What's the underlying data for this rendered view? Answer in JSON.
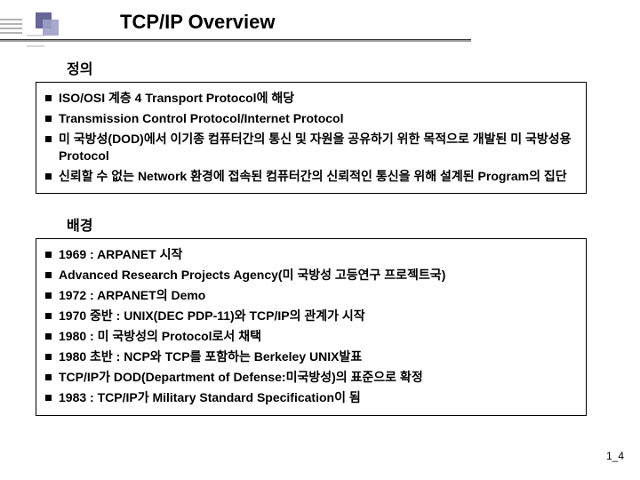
{
  "title": "TCP/IP Overview",
  "page_number": "1_4",
  "section1_title": "정의",
  "section2_title": "배경",
  "definition_items": [
    "ISO/OSI 계층 4 Transport Protocol에 해당",
    "Transmission Control Protocol/Internet Protocol",
    "미 국방성(DOD)에서 이기종 컴퓨터간의 통신 및 자원을 공유하기 위한 목적으로 개발된 미 국방성용 Protocol",
    "신뢰할 수 없는 Network 환경에 접속된 컴퓨터간의 신뢰적인 통신을 위해 설계된 Program의 집단"
  ],
  "background_items": [
    "1969 : ARPANET 시작",
    "Advanced Research Projects Agency(미 국방성 고등연구 프로젝트국)",
    "1972 : ARPANET의 Demo",
    "1970 중반 : UNIX(DEC PDP-11)와 TCP/IP의 관계가 시작",
    "1980 : 미 국방성의 Protocol로서 채택",
    "1980 초반 : NCP와 TCP를 포함하는 Berkeley UNIX발표",
    "TCP/IP가 DOD(Department of Defense:미국방성)의 표준으로 확정",
    "1983 : TCP/IP가 Military Standard Specification이 됨"
  ],
  "colors": {
    "text": "#000000",
    "border": "#000000",
    "icon_primary": "#666699",
    "icon_secondary": "#a0a0c8",
    "background": "#ffffff"
  }
}
